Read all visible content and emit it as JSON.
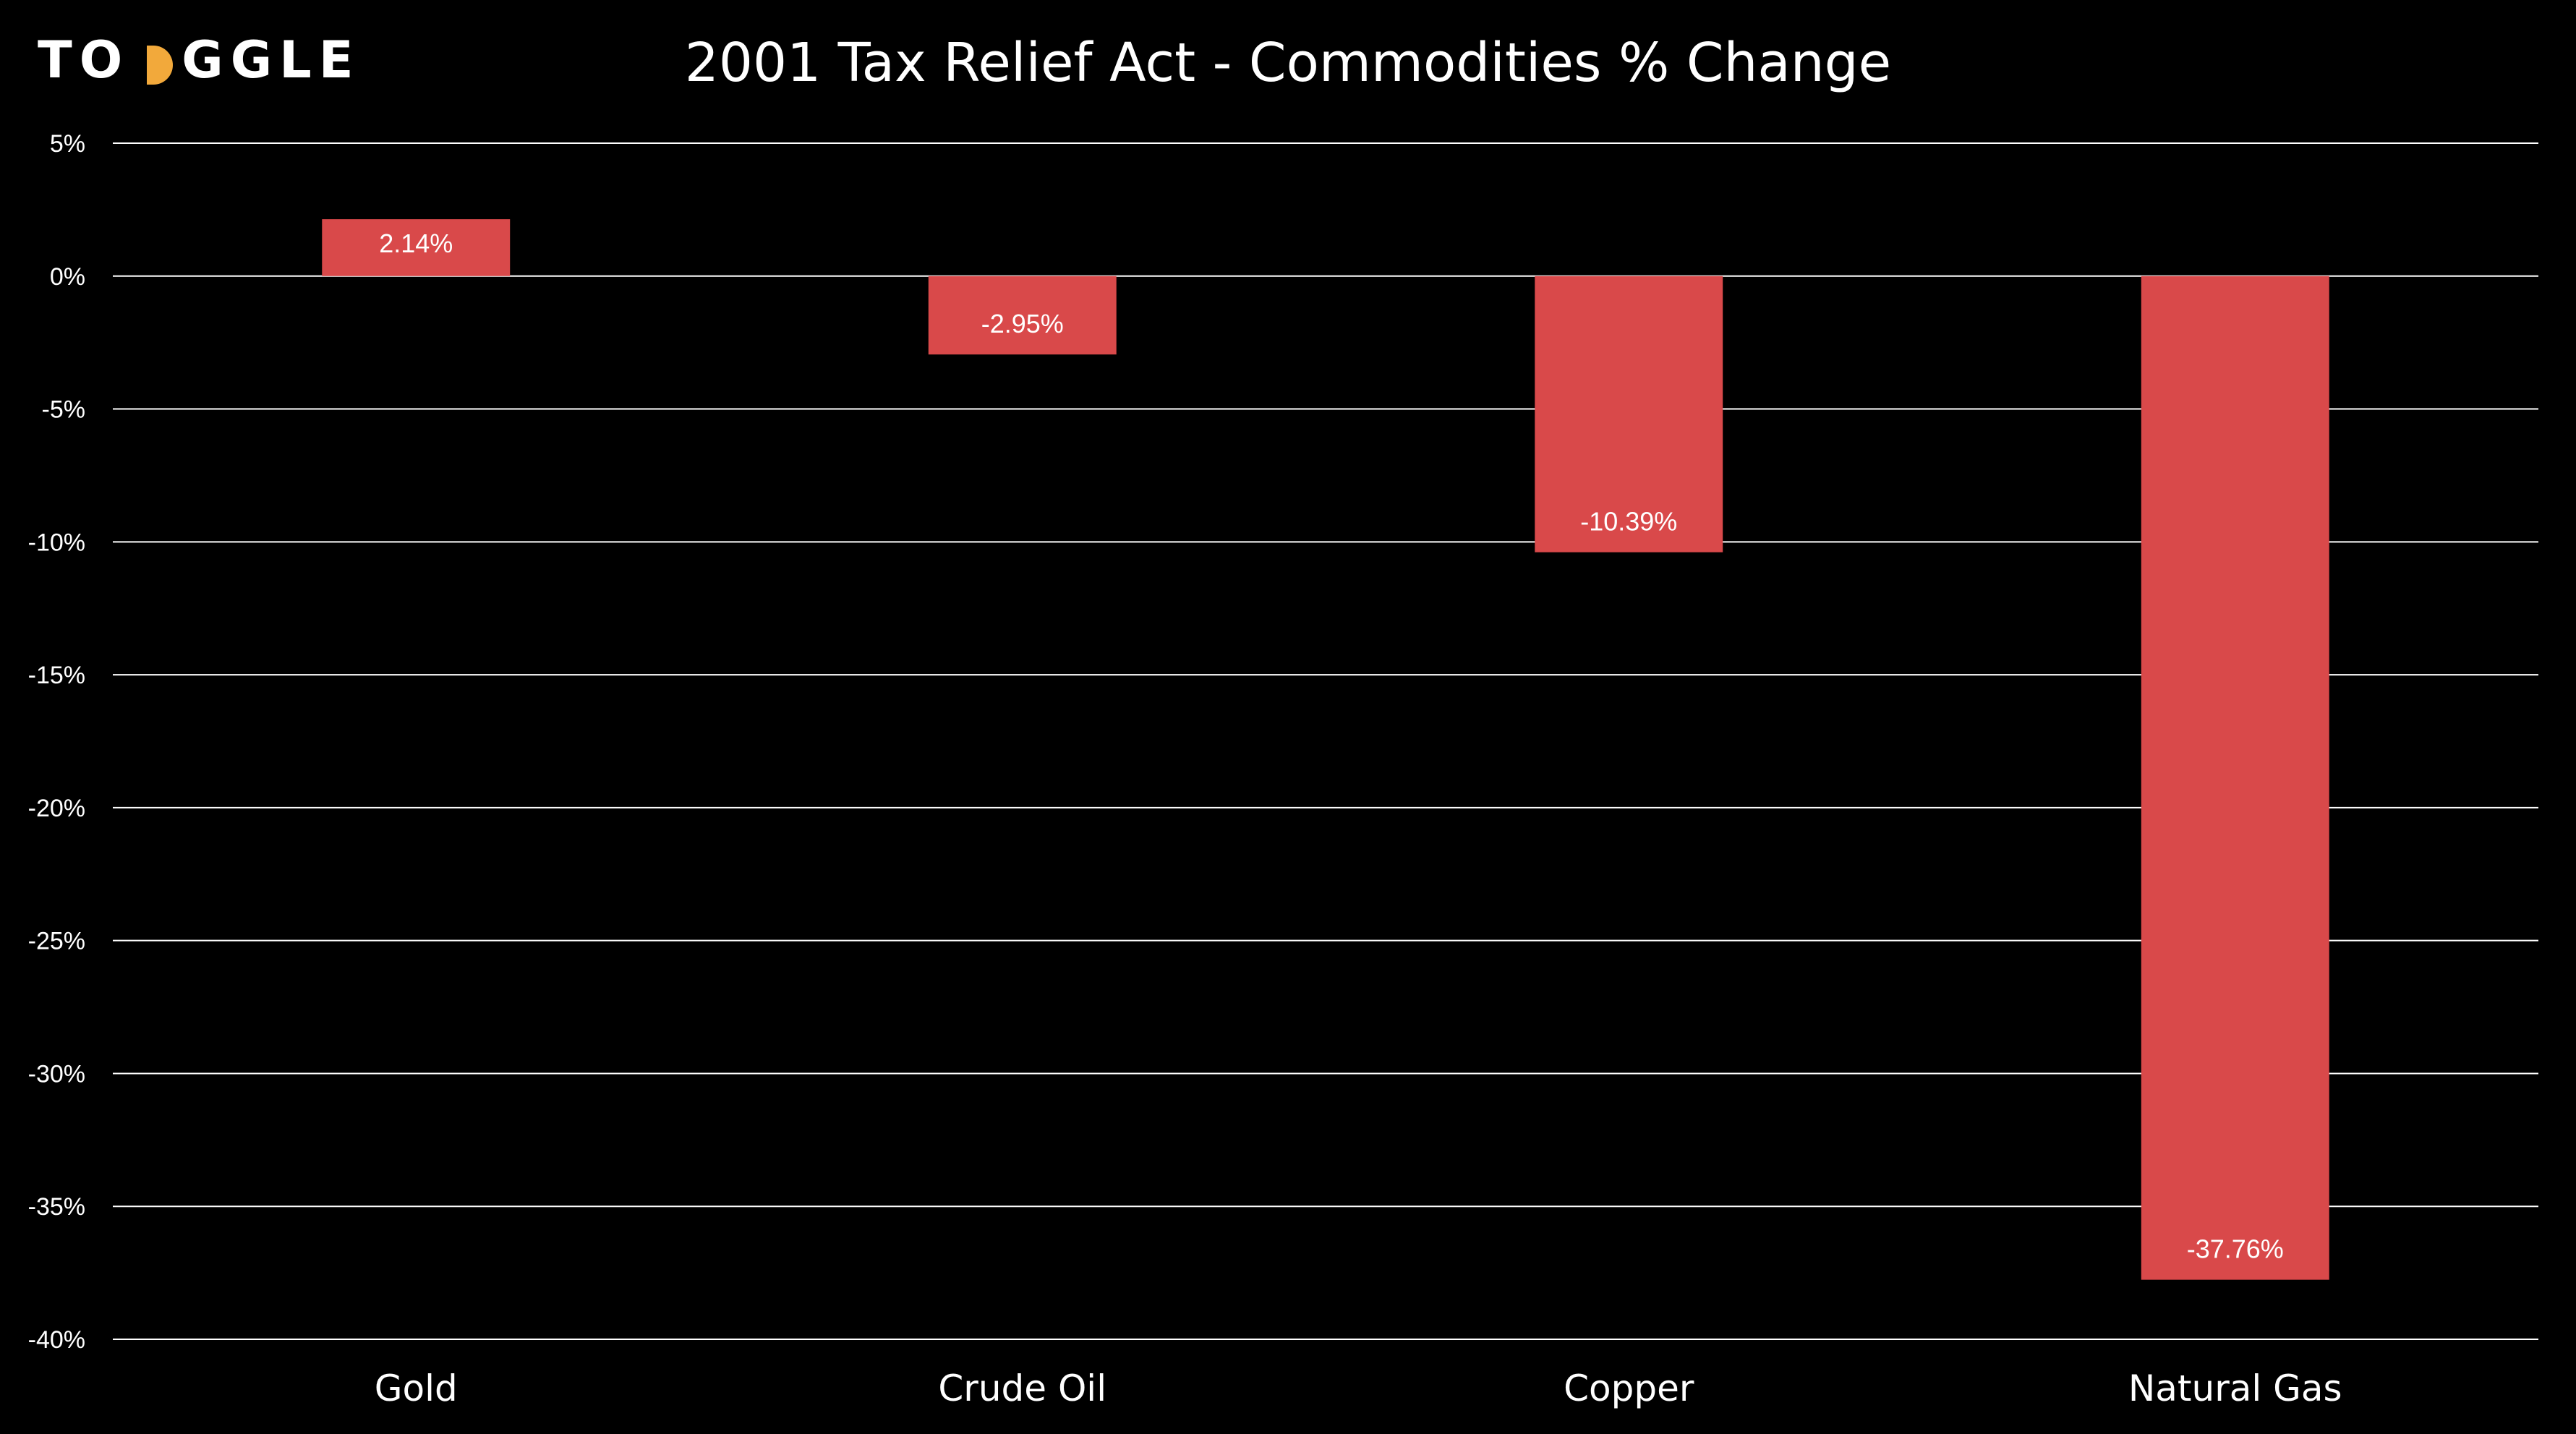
{
  "logo": {
    "text_left": "TO",
    "text_right": "GGLE",
    "mark_name": "toggle-circle-mark",
    "mark_color": "#f2a93b"
  },
  "chart_data": {
    "type": "bar",
    "title": "2001 Tax Relief Act - Commodities % Change",
    "categories": [
      "Gold",
      "Crude Oil",
      "Copper",
      "Natural Gas"
    ],
    "values": [
      2.14,
      -2.95,
      -10.39,
      -37.76
    ],
    "data_labels": [
      "2.14%",
      "-2.95%",
      "-10.39%",
      "-37.76%"
    ],
    "xlabel": "",
    "ylabel": "",
    "ylim": [
      -40,
      5
    ],
    "yticks": [
      5,
      0,
      -5,
      -10,
      -15,
      -20,
      -25,
      -30,
      -35,
      -40
    ],
    "ytick_labels": [
      "5%",
      "0%",
      "-5%",
      "-10%",
      "-15%",
      "-20%",
      "-25%",
      "-30%",
      "-35%",
      "-40%"
    ],
    "grid": true,
    "legend": "none",
    "bar_color": "#d9494a",
    "background": "#000000",
    "gridline_color": "#ffffff"
  }
}
